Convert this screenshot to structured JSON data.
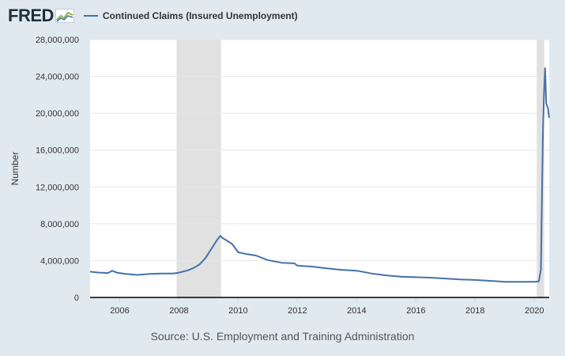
{
  "header": {
    "logo_text": "FRED",
    "logo_icon": "chart-line-icon",
    "legend_label": "Continued Claims (Insured Unemployment)"
  },
  "source": "Source: U.S. Employment and Training Administration",
  "colors": {
    "background": "#e1e9f0",
    "plot_background": "#ffffff",
    "series": "#4572a7",
    "recession": "#e1e1e1",
    "grid": "#e6e6e6"
  },
  "chart_data": {
    "type": "line",
    "title": "",
    "xlabel": "",
    "ylabel": "Number",
    "xlim": [
      2005.0,
      2020.5
    ],
    "ylim": [
      0,
      28000000
    ],
    "x_ticks": [
      2006,
      2008,
      2010,
      2012,
      2014,
      2016,
      2018,
      2020
    ],
    "x_tick_labels": [
      "2006",
      "2008",
      "2010",
      "2012",
      "2014",
      "2016",
      "2018",
      "2020"
    ],
    "y_ticks": [
      0,
      4000000,
      8000000,
      12000000,
      16000000,
      20000000,
      24000000,
      28000000
    ],
    "y_tick_labels": [
      "0",
      "4,000,000",
      "8,000,000",
      "12,000,000",
      "16,000,000",
      "20,000,000",
      "24,000,000",
      "28,000,000"
    ],
    "grid": "horizontal",
    "recessions": [
      [
        2007.92,
        2009.42
      ],
      [
        2020.08,
        2020.33
      ]
    ],
    "series": [
      {
        "name": "Continued Claims (Insured Unemployment)",
        "x": [
          2005.0,
          2005.3,
          2005.6,
          2005.75,
          2005.9,
          2006.2,
          2006.6,
          2007.0,
          2007.4,
          2007.8,
          2008.0,
          2008.3,
          2008.5,
          2008.7,
          2008.9,
          2009.1,
          2009.3,
          2009.4,
          2009.45,
          2009.55,
          2009.8,
          2010.0,
          2010.3,
          2010.6,
          2011.0,
          2011.5,
          2011.9,
          2012.0,
          2012.5,
          2013.0,
          2013.5,
          2014.0,
          2014.5,
          2015.0,
          2015.5,
          2016.0,
          2016.5,
          2017.0,
          2017.5,
          2018.0,
          2018.5,
          2019.0,
          2019.5,
          2020.0,
          2020.15,
          2020.22,
          2020.26,
          2020.29,
          2020.33,
          2020.36,
          2020.4,
          2020.43,
          2020.46,
          2020.5
        ],
        "values": [
          2800000,
          2700000,
          2650000,
          2900000,
          2700000,
          2550000,
          2450000,
          2550000,
          2600000,
          2600000,
          2700000,
          2950000,
          3200000,
          3600000,
          4300000,
          5300000,
          6300000,
          6700000,
          6500000,
          6300000,
          5800000,
          4900000,
          4700000,
          4550000,
          4050000,
          3750000,
          3700000,
          3450000,
          3350000,
          3150000,
          3000000,
          2900000,
          2600000,
          2400000,
          2250000,
          2200000,
          2150000,
          2050000,
          1950000,
          1900000,
          1800000,
          1700000,
          1700000,
          1700000,
          1750000,
          3000000,
          11900000,
          18000000,
          22600000,
          24900000,
          21000000,
          20800000,
          20500000,
          19500000
        ]
      }
    ]
  }
}
